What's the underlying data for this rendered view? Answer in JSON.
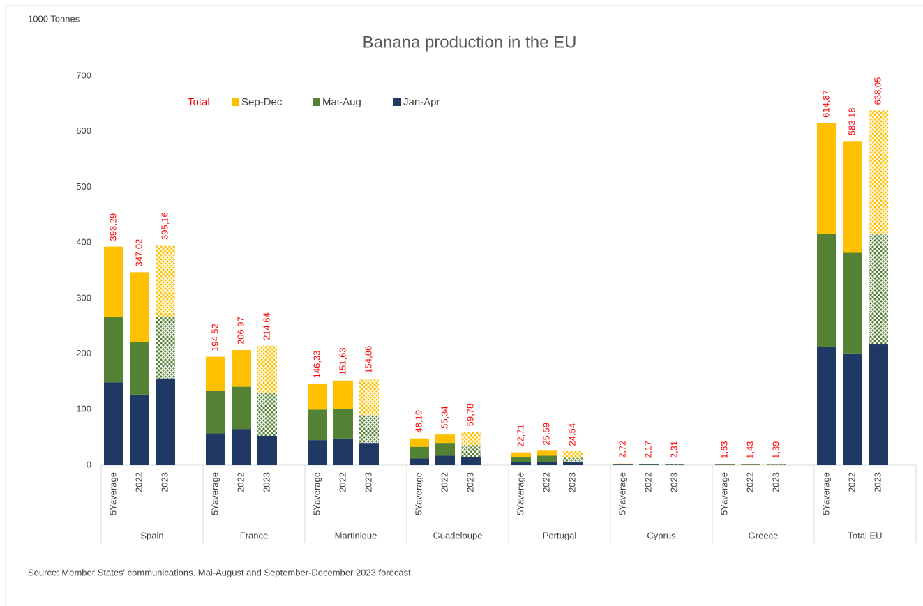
{
  "chart_data": {
    "type": "grouped-stacked-bar",
    "title": "Banana production in the EU",
    "y_axis_label": "1000 Tonnes",
    "source": "Source: Member States' communications. Mai-August and September-December  2023 forecast",
    "groups": [
      "Spain",
      "France",
      "Martinique",
      "Guadeloupe",
      "Portugal",
      "Cyprus",
      "Greece",
      "Total EU"
    ],
    "subcategories": [
      "5Yaverage",
      "2022",
      "2023"
    ],
    "ylim": [
      0,
      700
    ],
    "yticks": [
      0,
      100,
      200,
      300,
      400,
      500,
      600,
      700
    ],
    "series": [
      {
        "name": "Jan-Apr",
        "color": "#203864",
        "values": [
          149,
          127,
          156,
          57,
          65,
          53,
          45,
          48,
          40,
          12,
          17,
          14,
          6,
          6,
          5,
          1.0,
          0.8,
          0.8,
          0.5,
          0.5,
          0.5,
          213,
          201,
          217
        ]
      },
      {
        "name": "Mai-Aug",
        "color": "#548235",
        "pattern_subcategories": [
          "2023"
        ],
        "values": [
          117,
          95,
          110,
          76,
          76,
          77,
          55,
          53,
          50,
          21,
          23,
          22,
          8,
          11,
          8,
          0.9,
          0.7,
          0.8,
          0.6,
          0.5,
          0.5,
          203,
          181,
          198
        ]
      },
      {
        "name": "Sep-Dec",
        "color": "#ffc000",
        "pattern_subcategories": [
          "2023"
        ],
        "values": [
          127,
          125,
          129,
          62,
          66,
          85,
          46,
          51,
          65,
          15,
          15,
          24,
          9,
          9,
          12,
          0.8,
          0.7,
          0.7,
          0.5,
          0.4,
          0.4,
          199,
          201,
          223
        ]
      }
    ],
    "totals": {
      "name": "Total",
      "color": "#ff0000",
      "values": [
        393.29,
        347.02,
        395.16,
        194.52,
        206.97,
        214.64,
        146.33,
        151.63,
        154.86,
        48.19,
        55.34,
        59.78,
        22.71,
        25.59,
        24.54,
        2.72,
        2.17,
        2.31,
        1.63,
        1.43,
        1.39,
        614.87,
        583.18,
        638.05
      ],
      "value_labels": [
        "393,29",
        "347,02",
        "395,16",
        "194,52",
        "206,97",
        "214,64",
        "146,33",
        "151,63",
        "154,86",
        "48,19",
        "55,34",
        "59,78",
        "22,71",
        "25,59",
        "24,54",
        "2,72",
        "2,17",
        "2,31",
        "1,63",
        "1,43",
        "1,39",
        "614,87",
        "583,18",
        "638,05"
      ]
    }
  }
}
